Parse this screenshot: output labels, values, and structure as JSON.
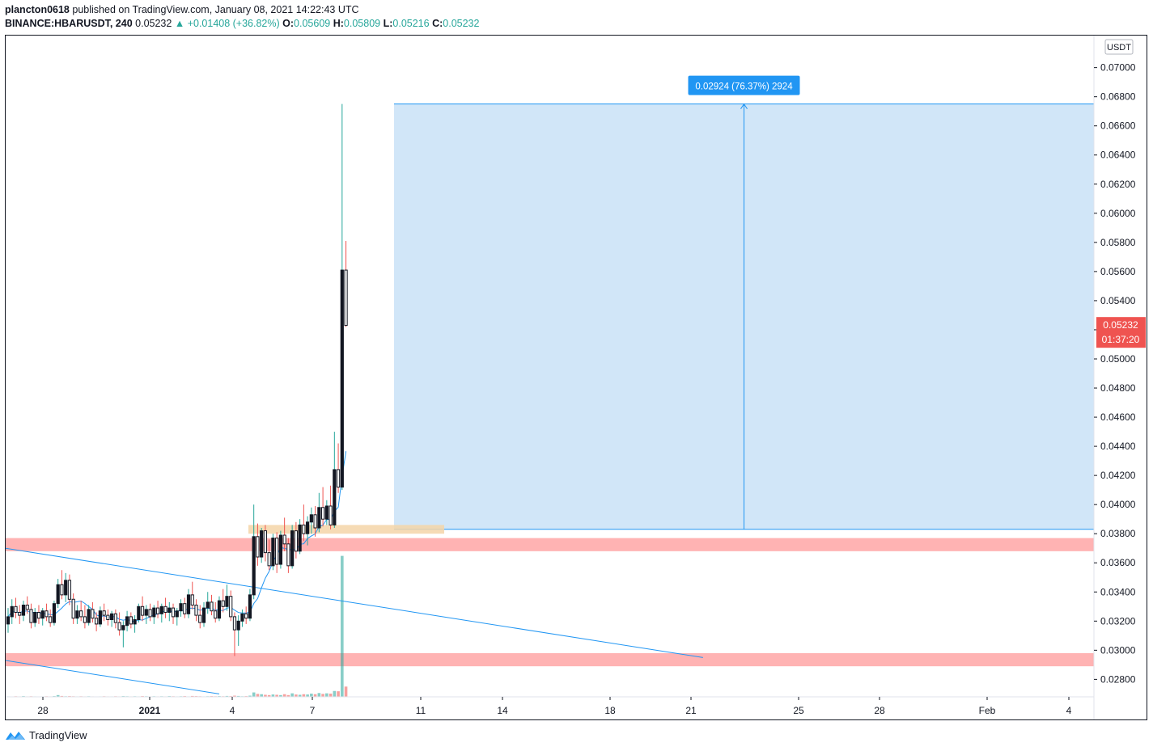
{
  "header": {
    "author": "plancton0618",
    "published_text": "published on TradingView.com, January 08, 2021 14:22:43 UTC",
    "symbol": "BINANCE:HBARUSDT, 240",
    "last": "0.05232",
    "arrow": "▲",
    "change": "+0.01408 (+36.82%)",
    "o_label": "O:",
    "o": "0.05609",
    "h_label": "H:",
    "h": "0.05809",
    "l_label": "L:",
    "l": "0.05216",
    "c_label": "C:",
    "c": "0.05232"
  },
  "footer": {
    "brand": "TradingView",
    "icon": "tradingview-logo-icon"
  },
  "colors": {
    "up": "#26a69a",
    "down": "#ef5350",
    "candle_body": "#131722",
    "ma_line": "#2196f3",
    "zone": "#ffb3b3",
    "measure_fill": "#d1e6f8",
    "entry_zone": "#f5d5a8"
  },
  "chart_data": {
    "type": "candlestick",
    "timeframe_minutes": 240,
    "currency_label": "USDT",
    "ylim": [
      0.0268,
      0.0722
    ],
    "y_ticks": [
      0.028,
      0.03,
      0.032,
      0.034,
      0.036,
      0.038,
      0.04,
      0.042,
      0.044,
      0.046,
      0.048,
      0.05,
      0.052,
      0.054,
      0.056,
      0.058,
      0.06,
      0.062,
      0.064,
      0.066,
      0.068,
      0.07
    ],
    "x_ticks": [
      {
        "label": "28",
        "bold": false
      },
      {
        "label": "2021",
        "bold": true
      },
      {
        "label": "4",
        "bold": false
      },
      {
        "label": "7",
        "bold": false
      },
      {
        "label": "11",
        "bold": false
      },
      {
        "label": "14",
        "bold": false
      },
      {
        "label": "18",
        "bold": false
      },
      {
        "label": "21",
        "bold": false
      },
      {
        "label": "25",
        "bold": false
      },
      {
        "label": "28",
        "bold": false
      },
      {
        "label": "Feb",
        "bold": false
      },
      {
        "label": "4",
        "bold": false
      }
    ],
    "price_label": "0.05232",
    "countdown_label": "01:37:20",
    "measure": {
      "from": 0.0383,
      "to": 0.0675,
      "label": "0.02924 (76.37%) 2924"
    },
    "support_zones": [
      [
        0.0368,
        0.0377
      ],
      [
        0.0289,
        0.0298
      ]
    ],
    "entry_zone": [
      0.038,
      0.0386
    ],
    "trend_lines": [
      {
        "from": {
          "candle": 0,
          "price": 0.037
        },
        "to": {
          "candle": 181,
          "price": 0.0295
        }
      },
      {
        "from": {
          "candle": 0,
          "price": 0.0293
        },
        "to": {
          "candle": 55,
          "price": 0.027
        }
      }
    ],
    "ohlc": [
      [
        0.0318,
        0.0329,
        0.0312,
        0.0323
      ],
      [
        0.0323,
        0.0335,
        0.0318,
        0.033
      ],
      [
        0.033,
        0.0336,
        0.0322,
        0.0326
      ],
      [
        0.0326,
        0.0331,
        0.0318,
        0.0324
      ],
      [
        0.0324,
        0.0334,
        0.032,
        0.0331
      ],
      [
        0.0331,
        0.0337,
        0.0325,
        0.0328
      ],
      [
        0.0328,
        0.0332,
        0.0315,
        0.0319
      ],
      [
        0.0319,
        0.0329,
        0.0316,
        0.0326
      ],
      [
        0.0326,
        0.0331,
        0.0318,
        0.0322
      ],
      [
        0.0322,
        0.0329,
        0.0317,
        0.0327
      ],
      [
        0.0327,
        0.0332,
        0.032,
        0.0323
      ],
      [
        0.0323,
        0.0328,
        0.0316,
        0.0319
      ],
      [
        0.0319,
        0.0334,
        0.0317,
        0.0332
      ],
      [
        0.0332,
        0.0349,
        0.0329,
        0.0345
      ],
      [
        0.0345,
        0.0355,
        0.0335,
        0.0338
      ],
      [
        0.0338,
        0.0353,
        0.0333,
        0.0348
      ],
      [
        0.0348,
        0.0352,
        0.0331,
        0.0335
      ],
      [
        0.0335,
        0.0339,
        0.0318,
        0.0322
      ],
      [
        0.0322,
        0.0331,
        0.0318,
        0.0327
      ],
      [
        0.0327,
        0.0334,
        0.032,
        0.0323
      ],
      [
        0.0323,
        0.0331,
        0.0315,
        0.0319
      ],
      [
        0.0319,
        0.0331,
        0.0317,
        0.0328
      ],
      [
        0.0328,
        0.0333,
        0.0319,
        0.0322
      ],
      [
        0.0322,
        0.0326,
        0.0313,
        0.0318
      ],
      [
        0.0318,
        0.033,
        0.0316,
        0.0327
      ],
      [
        0.0327,
        0.0332,
        0.032,
        0.0324
      ],
      [
        0.0324,
        0.0328,
        0.0317,
        0.0321
      ],
      [
        0.0321,
        0.0327,
        0.0316,
        0.0325
      ],
      [
        0.0325,
        0.0328,
        0.0315,
        0.0319
      ],
      [
        0.0319,
        0.0326,
        0.031,
        0.0314
      ],
      [
        0.0314,
        0.032,
        0.0302,
        0.0317
      ],
      [
        0.0317,
        0.0327,
        0.0313,
        0.0323
      ],
      [
        0.0323,
        0.0326,
        0.0315,
        0.0318
      ],
      [
        0.0318,
        0.0324,
        0.0312,
        0.0321
      ],
      [
        0.0321,
        0.0332,
        0.0319,
        0.033
      ],
      [
        0.033,
        0.0337,
        0.032,
        0.0324
      ],
      [
        0.0324,
        0.0331,
        0.0318,
        0.0328
      ],
      [
        0.0328,
        0.0332,
        0.032,
        0.0323
      ],
      [
        0.0323,
        0.0331,
        0.0318,
        0.0329
      ],
      [
        0.0329,
        0.0334,
        0.0322,
        0.0325
      ],
      [
        0.0325,
        0.0332,
        0.0319,
        0.033
      ],
      [
        0.033,
        0.0336,
        0.0322,
        0.0326
      ],
      [
        0.0326,
        0.0333,
        0.032,
        0.0329
      ],
      [
        0.0329,
        0.0332,
        0.0318,
        0.0323
      ],
      [
        0.0323,
        0.0329,
        0.0317,
        0.0327
      ],
      [
        0.0327,
        0.0335,
        0.0323,
        0.0332
      ],
      [
        0.0332,
        0.0336,
        0.0322,
        0.0325
      ],
      [
        0.0325,
        0.0342,
        0.0322,
        0.0338
      ],
      [
        0.0338,
        0.0347,
        0.0328,
        0.0331
      ],
      [
        0.0331,
        0.0335,
        0.032,
        0.0324
      ],
      [
        0.0324,
        0.0331,
        0.0315,
        0.0319
      ],
      [
        0.0319,
        0.0333,
        0.0316,
        0.0329
      ],
      [
        0.0329,
        0.034,
        0.0325,
        0.0333
      ],
      [
        0.0333,
        0.0338,
        0.0324,
        0.0327
      ],
      [
        0.0327,
        0.0333,
        0.0319,
        0.0322
      ],
      [
        0.0322,
        0.0337,
        0.032,
        0.0334
      ],
      [
        0.0334,
        0.0342,
        0.0326,
        0.033
      ],
      [
        0.033,
        0.0345,
        0.0327,
        0.0337
      ],
      [
        0.0337,
        0.0341,
        0.032,
        0.0323
      ],
      [
        0.0323,
        0.0326,
        0.0296,
        0.0314
      ],
      [
        0.0314,
        0.0324,
        0.0303,
        0.032
      ],
      [
        0.032,
        0.0328,
        0.0316,
        0.0325
      ],
      [
        0.0325,
        0.033,
        0.0318,
        0.0322
      ],
      [
        0.0322,
        0.0342,
        0.032,
        0.0338
      ],
      [
        0.0338,
        0.04,
        0.0335,
        0.0378
      ],
      [
        0.0378,
        0.0387,
        0.0358,
        0.0364
      ],
      [
        0.0364,
        0.0384,
        0.036,
        0.0382
      ],
      [
        0.0382,
        0.0386,
        0.0361,
        0.0367
      ],
      [
        0.0367,
        0.0376,
        0.0355,
        0.0358
      ],
      [
        0.0358,
        0.038,
        0.0355,
        0.0377
      ],
      [
        0.0377,
        0.0381,
        0.0353,
        0.0359
      ],
      [
        0.0359,
        0.0382,
        0.0356,
        0.0379
      ],
      [
        0.0379,
        0.0391,
        0.0368,
        0.0373
      ],
      [
        0.0373,
        0.0377,
        0.0353,
        0.0358
      ],
      [
        0.0358,
        0.0386,
        0.0356,
        0.0382
      ],
      [
        0.0382,
        0.0388,
        0.0363,
        0.0368
      ],
      [
        0.0368,
        0.039,
        0.0366,
        0.0386
      ],
      [
        0.0386,
        0.04,
        0.0375,
        0.038
      ],
      [
        0.038,
        0.0392,
        0.0372,
        0.0388
      ],
      [
        0.0388,
        0.0398,
        0.038,
        0.0393
      ],
      [
        0.0393,
        0.0399,
        0.0378,
        0.0384
      ],
      [
        0.0384,
        0.0408,
        0.0381,
        0.0398
      ],
      [
        0.0398,
        0.0412,
        0.0385,
        0.039
      ],
      [
        0.039,
        0.0403,
        0.0386,
        0.0399
      ],
      [
        0.0399,
        0.0413,
        0.0383,
        0.0386
      ],
      [
        0.0386,
        0.045,
        0.0384,
        0.0424
      ],
      [
        0.0424,
        0.0442,
        0.0408,
        0.0412
      ],
      [
        0.0412,
        0.0675,
        0.041,
        0.0561
      ],
      [
        0.0561,
        0.0581,
        0.0522,
        0.0523
      ]
    ],
    "volumes": [
      3,
      2,
      4,
      3,
      5,
      3,
      4,
      3,
      2,
      3,
      4,
      3,
      5,
      12,
      6,
      4,
      5,
      4,
      3,
      4,
      3,
      4,
      3,
      2,
      3,
      4,
      3,
      3,
      4,
      3,
      5,
      4,
      3,
      4,
      3,
      5,
      4,
      3,
      4,
      3,
      4,
      3,
      5,
      4,
      3,
      4,
      5,
      3,
      6,
      5,
      4,
      3,
      4,
      5,
      4,
      5,
      4,
      6,
      5,
      8,
      6,
      4,
      5,
      8,
      30,
      20,
      18,
      14,
      12,
      16,
      14,
      12,
      18,
      12,
      24,
      16,
      14,
      18,
      16,
      22,
      18,
      26,
      20,
      24,
      22,
      40,
      38,
      330,
      70
    ]
  }
}
